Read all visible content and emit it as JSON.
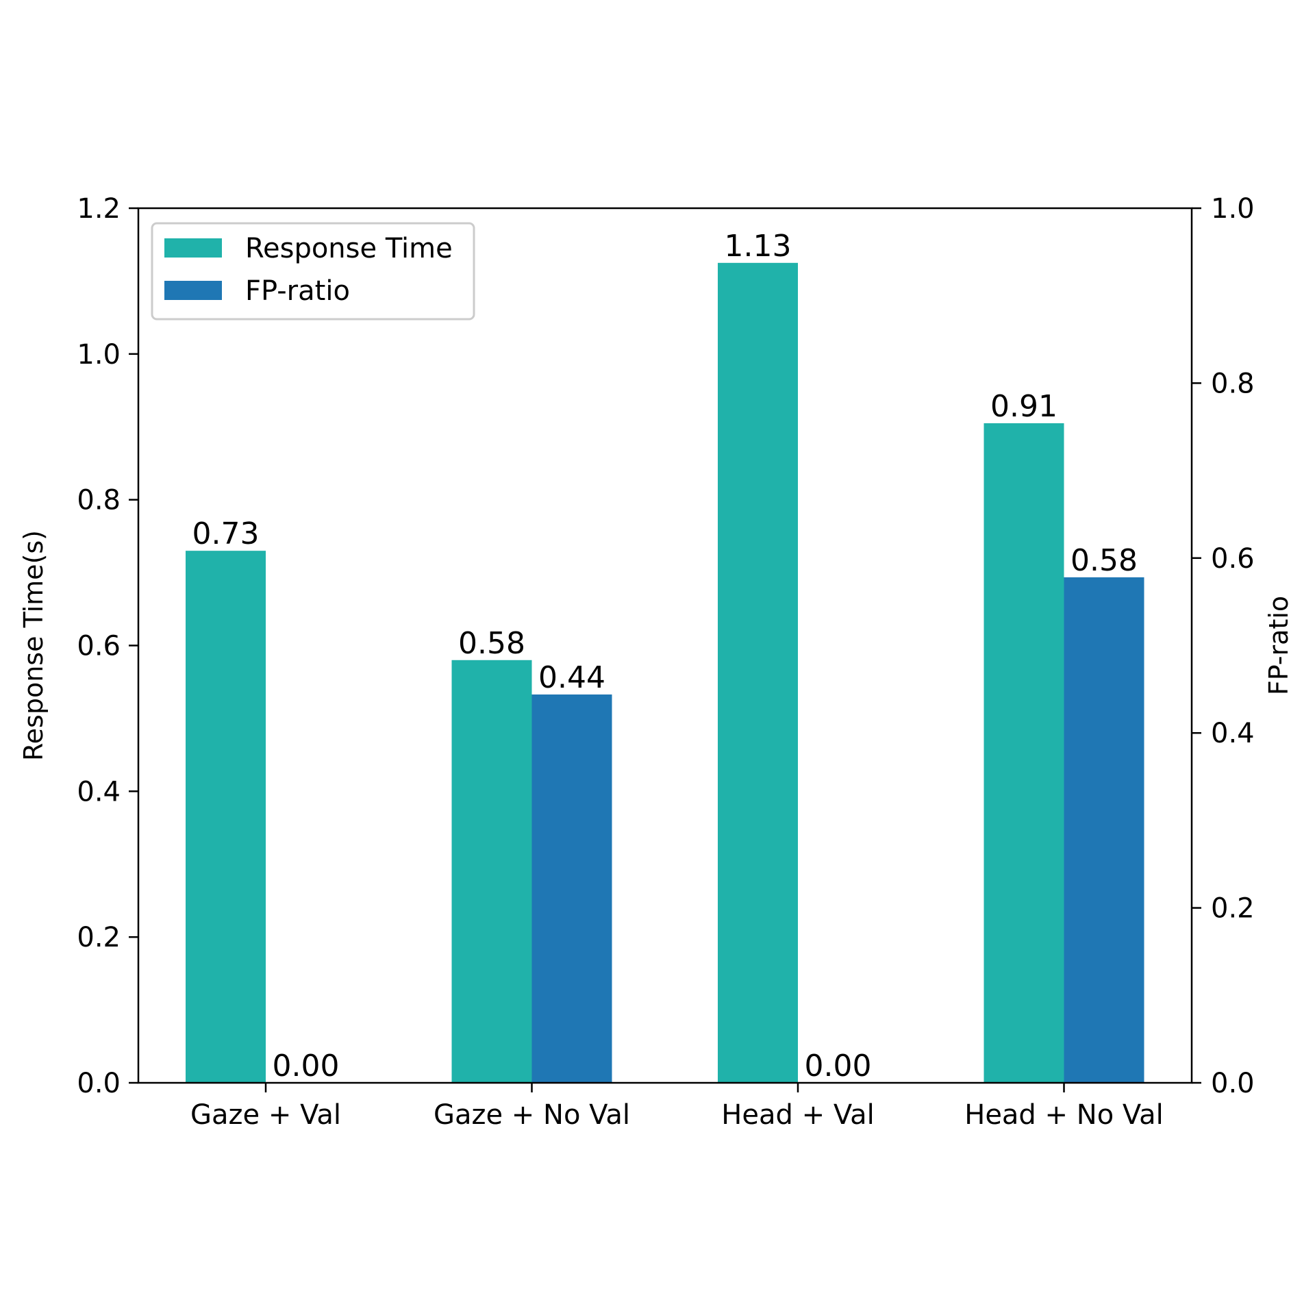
{
  "chart_data": {
    "type": "bar",
    "categories": [
      "Gaze + Val",
      "Gaze + No Val",
      "Head + Val",
      "Head + No Val"
    ],
    "series": [
      {
        "name": "Response Time",
        "axis": "left",
        "color": "#20b2aa",
        "values": [
          0.73,
          0.58,
          1.125,
          0.905
        ],
        "labels": [
          "0.73",
          "0.58",
          "1.13",
          "0.91"
        ]
      },
      {
        "name": "FP-ratio",
        "axis": "right",
        "color": "#1f77b4",
        "values": [
          0.0,
          0.444,
          0.0,
          0.578
        ],
        "labels": [
          "0.00",
          "0.44",
          "0.00",
          "0.58"
        ]
      }
    ],
    "ylabel": "Response Time(s)",
    "ylabel_right": "FP-ratio",
    "ylim": [
      0,
      1.2
    ],
    "ylim_right": [
      0,
      1.0
    ],
    "yticks": [
      "0.0",
      "0.2",
      "0.4",
      "0.6",
      "0.8",
      "1.0",
      "1.2"
    ],
    "yticks_right": [
      "0.0",
      "0.2",
      "0.4",
      "0.6",
      "0.8",
      "1.0"
    ],
    "grid": false,
    "legend_position": "top-left"
  }
}
